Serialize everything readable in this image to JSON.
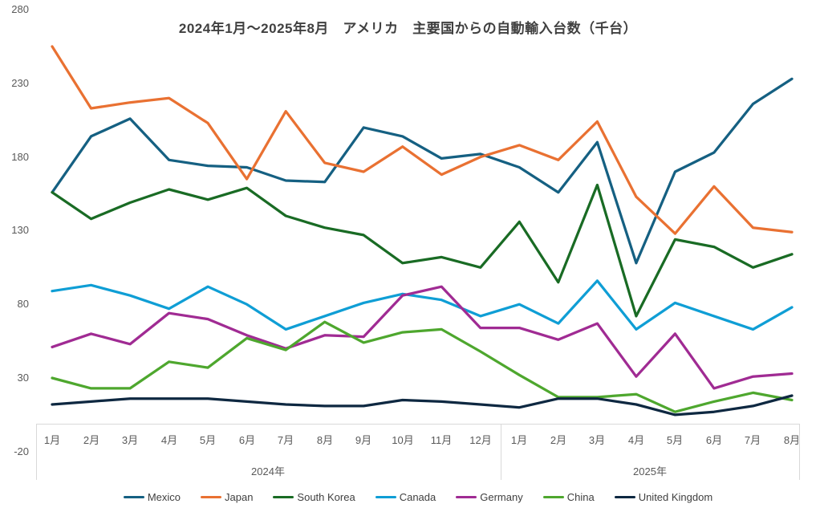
{
  "title": "2024年1月〜2025年8月　アメリカ　主要国からの自動輸入台数（千台）",
  "chart_data": {
    "type": "line",
    "title": "2024年1月〜2025年8月　アメリカ　主要国からの自動輸入台数（千台）",
    "unit": "千台",
    "grid": false,
    "legend_position": "bottom",
    "y_axis": {
      "min": -20,
      "max": 280,
      "step": 50,
      "ticks": [
        280,
        230,
        180,
        130,
        80,
        30,
        -20
      ]
    },
    "x_axis": {
      "groups": [
        {
          "label": "2024年",
          "months": [
            "1月",
            "2月",
            "3月",
            "4月",
            "5月",
            "6月",
            "7月",
            "8月",
            "9月",
            "10月",
            "11月",
            "12月"
          ]
        },
        {
          "label": "2025年",
          "months": [
            "1月",
            "2月",
            "3月",
            "4月",
            "5月",
            "6月",
            "7月",
            "8月"
          ]
        }
      ]
    },
    "series": [
      {
        "name": "Mexico",
        "color": "#156082",
        "values": [
          156,
          194,
          206,
          178,
          174,
          173,
          164,
          163,
          200,
          194,
          179,
          182,
          173,
          156,
          190,
          108,
          170,
          183,
          216,
          233
        ]
      },
      {
        "name": "Japan",
        "color": "#E97132",
        "values": [
          255,
          213,
          217,
          220,
          203,
          165,
          211,
          176,
          170,
          187,
          168,
          180,
          188,
          178,
          204,
          153,
          128,
          160,
          132,
          129
        ]
      },
      {
        "name": "South Korea",
        "color": "#196B24",
        "values": [
          156,
          138,
          149,
          158,
          151,
          159,
          140,
          132,
          127,
          108,
          112,
          105,
          136,
          95,
          161,
          72,
          124,
          119,
          105,
          114
        ]
      },
      {
        "name": "Canada",
        "color": "#0F9ED5",
        "values": [
          89,
          93,
          86,
          77,
          92,
          80,
          63,
          72,
          81,
          87,
          83,
          72,
          80,
          67,
          96,
          63,
          81,
          72,
          63,
          78
        ]
      },
      {
        "name": "Germany",
        "color": "#A02B93",
        "values": [
          51,
          60,
          53,
          74,
          70,
          59,
          50,
          59,
          58,
          86,
          92,
          64,
          64,
          56,
          67,
          31,
          60,
          23,
          31,
          33
        ]
      },
      {
        "name": "China",
        "color": "#4EA72E",
        "values": [
          30,
          23,
          23,
          41,
          37,
          57,
          49,
          68,
          54,
          61,
          63,
          48,
          32,
          17,
          17,
          19,
          7,
          14,
          20,
          15
        ]
      },
      {
        "name": "United Kingdom",
        "color": "#0E2841",
        "values": [
          12,
          14,
          16,
          16,
          16,
          14,
          12,
          11,
          11,
          15,
          14,
          12,
          10,
          16,
          16,
          12,
          5,
          7,
          11,
          18
        ]
      }
    ]
  },
  "colors": {
    "background": "#ffffff",
    "title_text": "#404040",
    "axis_text": "#595959",
    "legend_text": "#404040",
    "axis_border": "#D9D9D9"
  }
}
